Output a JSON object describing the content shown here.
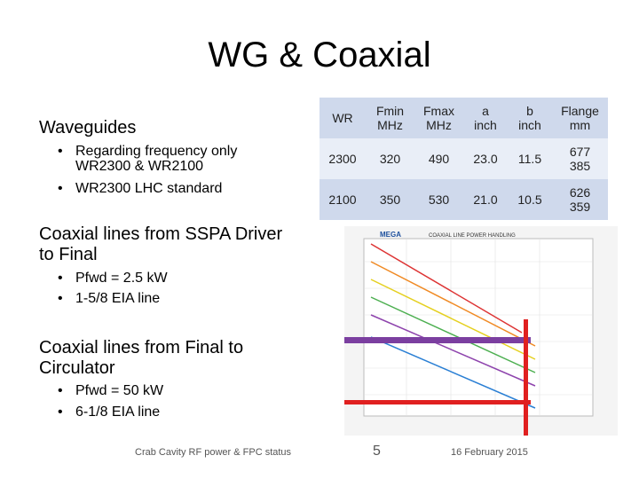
{
  "title": "WG & Coaxial",
  "sections": [
    {
      "heading": [
        "Waveguides"
      ],
      "bullets": [
        [
          "Regarding frequency only",
          "WR2300 & WR2100"
        ],
        [
          "WR2300 LHC standard"
        ]
      ]
    },
    {
      "heading": [
        "Coaxial lines from SSPA Driver",
        "to Final"
      ],
      "bullets": [
        [
          "Pfwd = 2.5 kW"
        ],
        [
          "1-5/8 EIA line"
        ]
      ]
    },
    {
      "heading": [
        "Coaxial lines from Final to",
        "Circulator"
      ],
      "bullets": [
        [
          "Pfwd = 50 kW"
        ],
        [
          "6-1/8 EIA line"
        ]
      ]
    }
  ],
  "table": {
    "header": [
      [
        "WR"
      ],
      [
        "Fmin",
        "MHz"
      ],
      [
        "Fmax",
        "MHz"
      ],
      [
        "a",
        "inch"
      ],
      [
        "b",
        "inch"
      ],
      [
        "Flange",
        "mm"
      ]
    ],
    "rows": [
      [
        [
          "2300"
        ],
        [
          "320"
        ],
        [
          "490"
        ],
        [
          "23.0"
        ],
        [
          "11.5"
        ],
        [
          "677",
          "385"
        ]
      ],
      [
        [
          "2100"
        ],
        [
          "350"
        ],
        [
          "530"
        ],
        [
          "21.0"
        ],
        [
          "10.5"
        ],
        [
          "626",
          "359"
        ]
      ]
    ]
  },
  "figure": {
    "brand": "MEGA",
    "title": "COAXIAL LINE POWER HANDLING"
  },
  "footer": {
    "left": "Crab Cavity RF power & FPC status",
    "page": "5",
    "date": "16 February 2015"
  }
}
